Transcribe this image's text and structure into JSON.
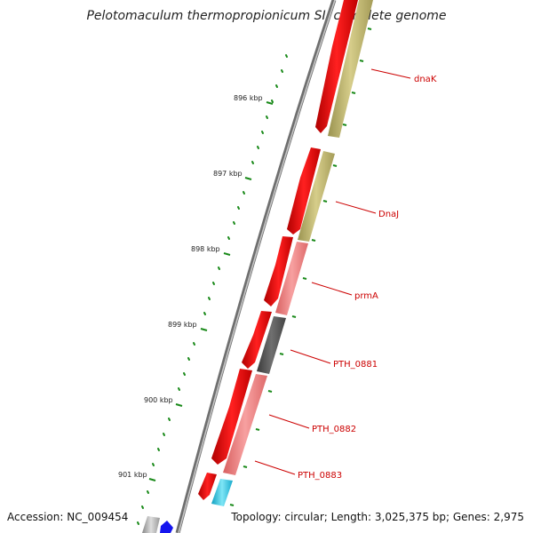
{
  "title": "Pelotomaculum thermopropionicum SI, complete genome",
  "footer": {
    "accession": "Accession: NC_009454",
    "topology": "Topology: circular; Length: 3,025,375 bp; Genes: 2,975"
  },
  "kbp_labels": [
    "896 kbp",
    "897 kbp",
    "898 kbp",
    "899 kbp",
    "900 kbp",
    "901 kbp"
  ],
  "gene_labels": [
    "dnaK",
    "DnaJ",
    "prmA",
    "PTH_0881",
    "PTH_0882",
    "PTH_0883"
  ],
  "colors": {
    "backbone": "#8c8c8c",
    "cds": "#ff0000",
    "outer_olive": "#c8bf7a",
    "outer_pink": "#f08080",
    "outer_dark": "#555555",
    "outer_cyan": "#29c6e6",
    "label": "#cc0000",
    "tick": "#1a8a1a"
  }
}
